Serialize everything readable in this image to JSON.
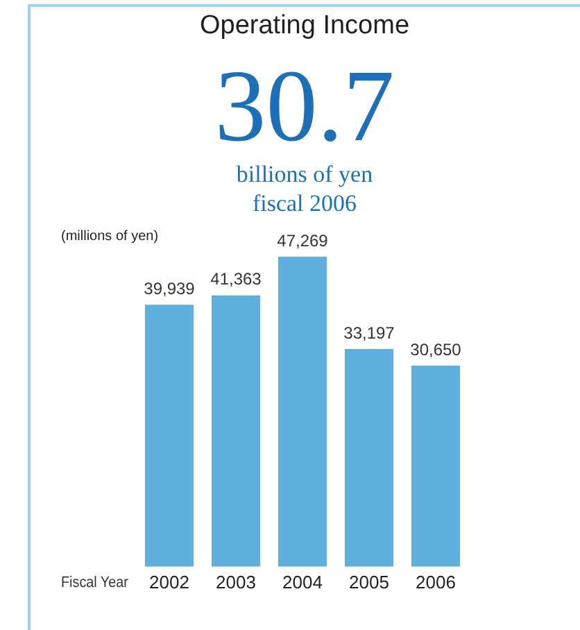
{
  "chart_data": {
    "type": "bar",
    "title": "Operating Income",
    "annotations": [
      "30.7",
      "billions of yen",
      "fiscal 2006"
    ],
    "ylabel": "(millions of yen)",
    "xlabel": "Fiscal Year",
    "categories": [
      "2002",
      "2003",
      "2004",
      "2005",
      "2006"
    ],
    "values": [
      39939,
      41363,
      47269,
      33197,
      30650
    ],
    "value_labels": [
      "39,939",
      "41,363",
      "47,269",
      "33,197",
      "30,650"
    ],
    "color": "#5eaede",
    "tick_labels": "x",
    "grid": false,
    "legend": false
  }
}
